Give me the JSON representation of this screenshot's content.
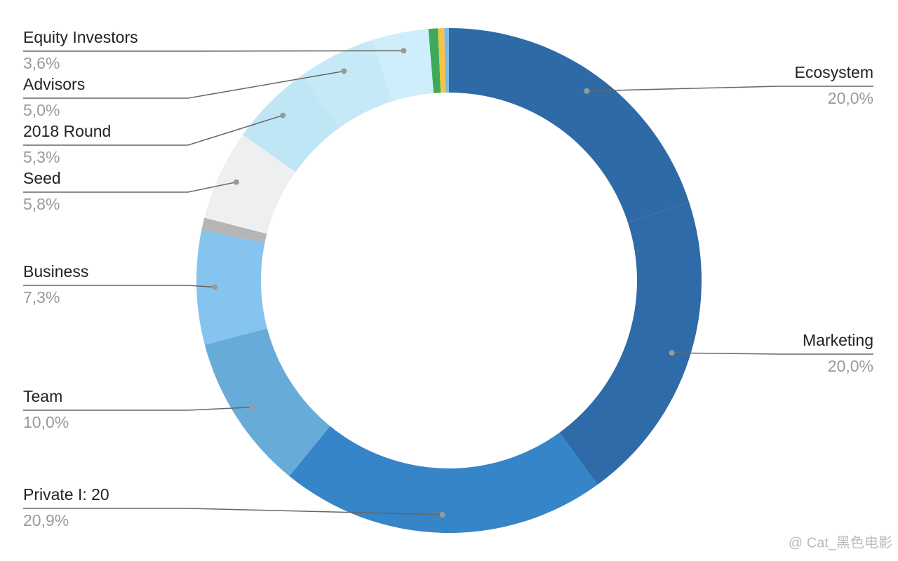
{
  "chart_data": {
    "type": "pie",
    "categories": [
      "Ecosystem",
      "Marketing",
      "Private I: 20",
      "Team",
      "Business",
      null,
      "Seed",
      "2018 Round",
      "Advisors",
      "Equity Investors",
      null,
      null,
      null
    ],
    "values": [
      20,
      20,
      20.9,
      10,
      7.3,
      0.8,
      5.8,
      5.3,
      5.0,
      3.6,
      0.6,
      0.4,
      0.3
    ],
    "value_labels": [
      "20,0%",
      "20,0%",
      "20,9%",
      "10,0%",
      "7,3%",
      null,
      "5,8%",
      "5,3%",
      "5,0%",
      "3,6%",
      null,
      null,
      null
    ],
    "colors": [
      "#2e6aa6",
      "#2f6ba8",
      "#3585c8",
      "#67acd9",
      "#84c4ef",
      "#b5b5b5",
      "#eeeff1",
      "#bfe6f4",
      "#c5e9f6",
      "#cdeefa",
      "#3daa5a",
      "#f4c542",
      "#7fb8e8"
    ],
    "donut": true
  },
  "watermark": "@ Cat_黑色电影"
}
